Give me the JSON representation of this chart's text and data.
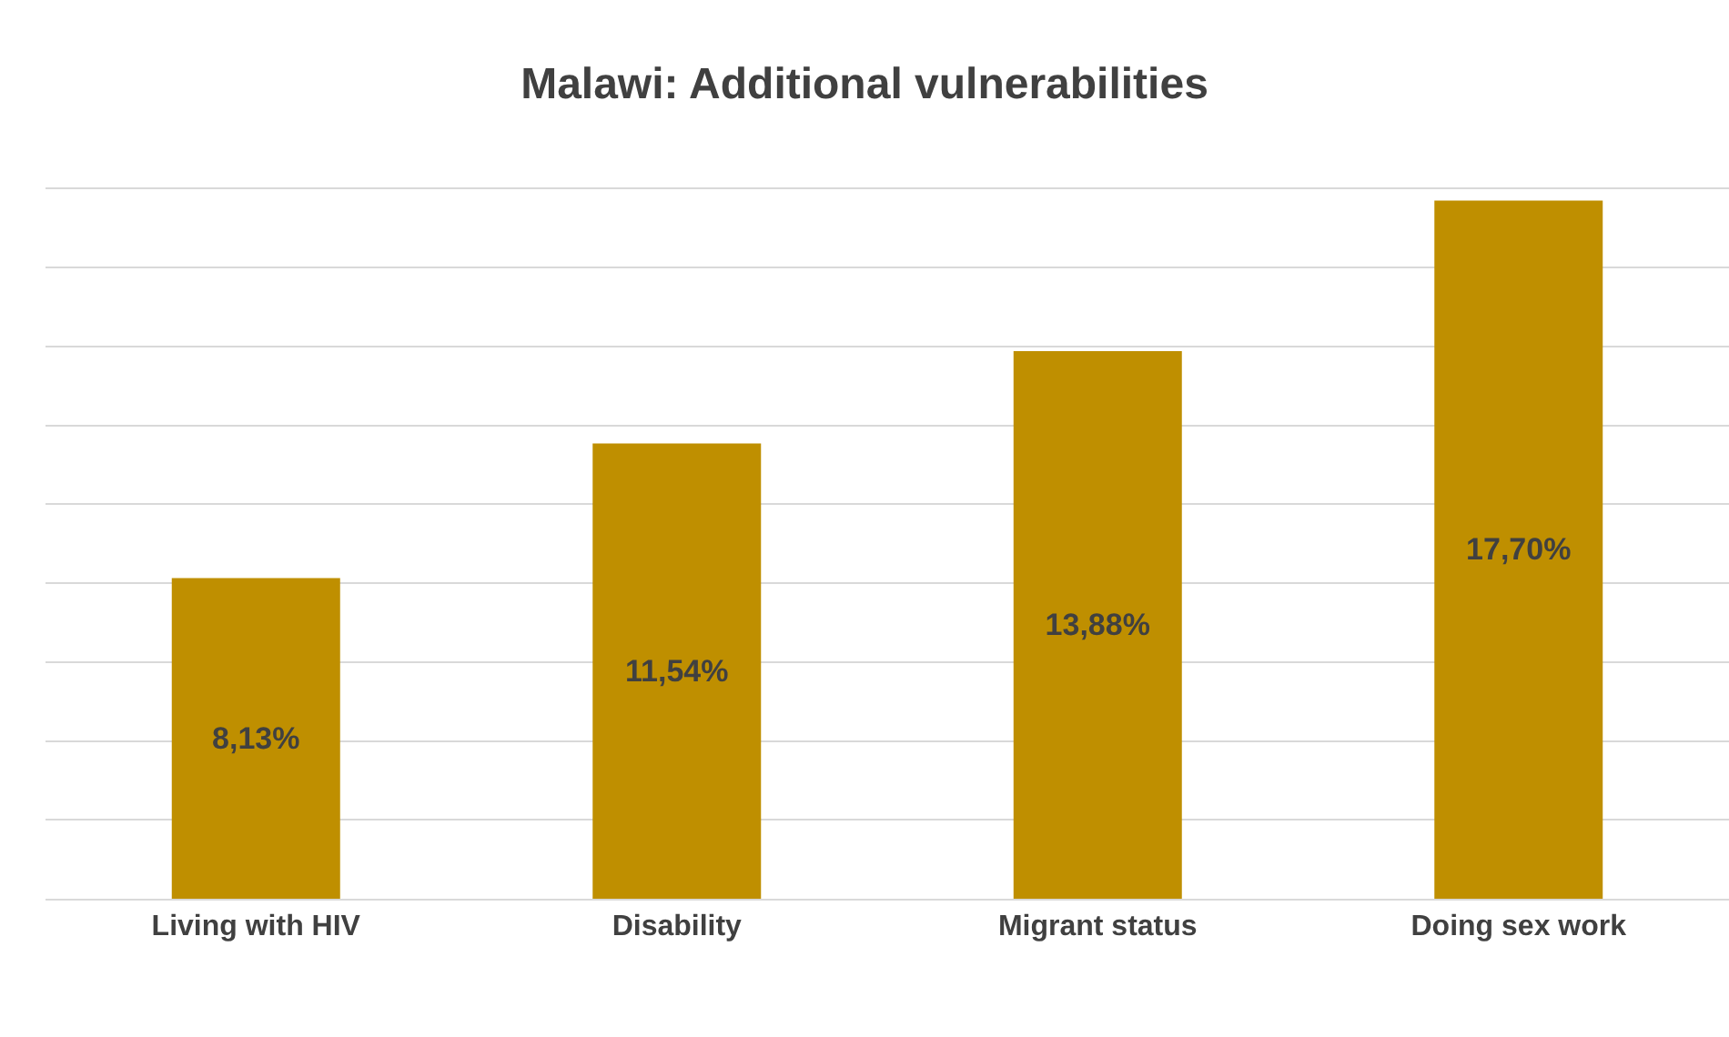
{
  "chart_data": {
    "type": "bar",
    "title": "Malawi: Additional vulnerabilities",
    "categories": [
      "Living with HIV",
      "Disability",
      "Migrant status",
      "Doing sex work"
    ],
    "values": [
      8.13,
      11.54,
      13.88,
      17.7
    ],
    "value_labels": [
      "8,13%",
      "11,54%",
      "13,88%",
      "17,70%"
    ],
    "color": "#bf8f00",
    "grid": "y",
    "tick_labels": "x"
  }
}
